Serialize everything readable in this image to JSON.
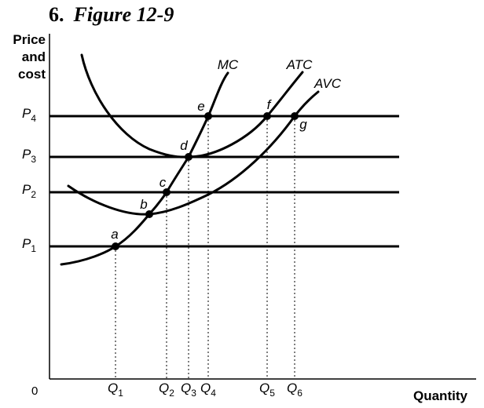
{
  "header": {
    "number": "6.",
    "title": "Figure 12-9"
  },
  "chart_data": {
    "type": "line",
    "xlabel": "Quantity",
    "ylabel": [
      "Price",
      "and",
      "cost"
    ],
    "origin_label": "0",
    "price_levels": [
      {
        "base": "P",
        "sub": "1"
      },
      {
        "base": "P",
        "sub": "2"
      },
      {
        "base": "P",
        "sub": "3"
      },
      {
        "base": "P",
        "sub": "4"
      }
    ],
    "quantity_levels": [
      {
        "base": "Q",
        "sub": "1"
      },
      {
        "base": "Q",
        "sub": "2"
      },
      {
        "base": "Q",
        "sub": "3"
      },
      {
        "base": "Q",
        "sub": "4"
      },
      {
        "base": "Q",
        "sub": "5"
      },
      {
        "base": "Q",
        "sub": "6"
      }
    ],
    "curves": [
      {
        "name": "MC"
      },
      {
        "name": "ATC"
      },
      {
        "name": "AVC"
      }
    ],
    "points": [
      {
        "label": "a",
        "price": "P1",
        "quantity": "Q1"
      },
      {
        "label": "b"
      },
      {
        "label": "c",
        "price": "P2",
        "quantity": "Q2"
      },
      {
        "label": "d",
        "price": "P3",
        "quantity": "Q3"
      },
      {
        "label": "e",
        "price": "P4",
        "quantity": "Q4"
      },
      {
        "label": "f",
        "price": "P4",
        "quantity": "Q5"
      },
      {
        "label": "g",
        "price": "P4",
        "quantity": "Q6"
      }
    ]
  }
}
